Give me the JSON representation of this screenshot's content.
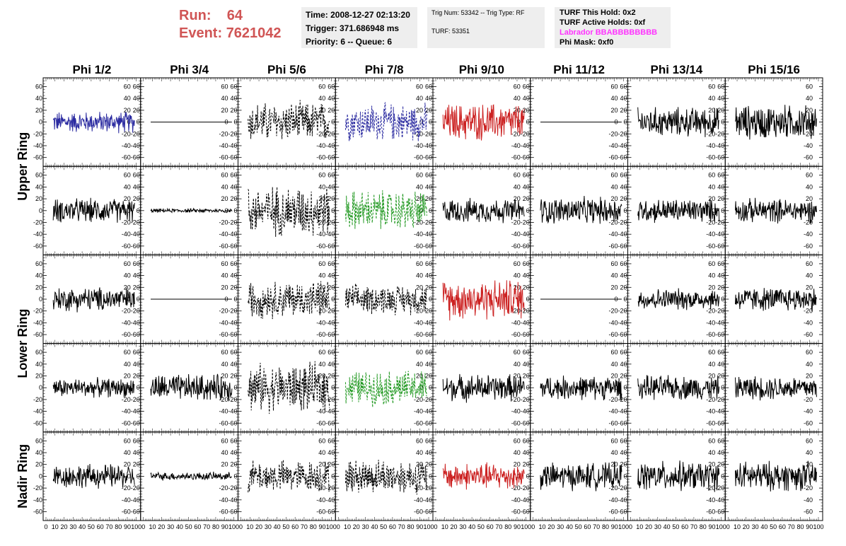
{
  "header": {
    "run_label": "Run:",
    "run_value": "64",
    "event_label": "Event:",
    "event_value": "7621042"
  },
  "time_panel": {
    "time": "Time: 2008-12-27 02:13:20",
    "trigger": "Trigger: 371.686948 ms",
    "priority": "Priority: 6 -- Queue: 6"
  },
  "trig_panel": {
    "trig": "Trig Num: 53342 -- Trig Type: RF",
    "turf": "TURF: 53351"
  },
  "turf_panel": {
    "hold": "TURF This Hold: 0x2",
    "active": "TURF Active Holds: 0xf",
    "labrador": "Labrador BBABBBBBBBB",
    "phi_mask": "Phi Mask: 0xf0"
  },
  "chart_data": {
    "type": "line",
    "columns": [
      "Phi 1/2",
      "Phi 3/4",
      "Phi 5/6",
      "Phi 7/8",
      "Phi 9/10",
      "Phi 11/12",
      "Phi 13/14",
      "Phi 15/16"
    ],
    "rows": [
      "Upper Ring",
      "Upper Ring",
      "Lower Ring",
      "Lower Ring",
      "Nadir Ring"
    ],
    "row_labels": [
      "Upper Ring",
      "Lower Ring",
      "Nadir Ring"
    ],
    "x_ticks": [
      "0",
      "10",
      "20",
      "30",
      "40",
      "50",
      "60",
      "70",
      "80",
      "90",
      "100"
    ],
    "xlim": [
      0,
      100
    ],
    "y_ticks": [
      "-60",
      "-40",
      "-20",
      "0",
      "20",
      "40",
      "60"
    ],
    "ylim": [
      -75,
      75
    ],
    "colors": {
      "blue": "#2a2aa0",
      "red": "#cc2222",
      "green": "#229922",
      "black": "#000000"
    },
    "traces": [
      [
        {
          "color": "blue",
          "amp": 16,
          "dash": false
        },
        {
          "color": "black",
          "amp": 0,
          "dash": false
        },
        {
          "color": "black",
          "amp": 30,
          "dash": true
        },
        {
          "color": "blue",
          "amp": 28,
          "dash": true
        },
        {
          "color": "red",
          "amp": 28,
          "dash": false
        },
        {
          "color": "black",
          "amp": 0,
          "dash": false
        },
        {
          "color": "black",
          "amp": 22,
          "dash": false
        },
        {
          "color": "black",
          "amp": 26,
          "dash": false
        }
      ],
      [
        {
          "color": "black",
          "amp": 18,
          "dash": false
        },
        {
          "color": "black",
          "amp": 3,
          "dash": false
        },
        {
          "color": "black",
          "amp": 38,
          "dash": true
        },
        {
          "color": "green",
          "amp": 30,
          "dash": true
        },
        {
          "color": "black",
          "amp": 18,
          "dash": false
        },
        {
          "color": "black",
          "amp": 20,
          "dash": false
        },
        {
          "color": "black",
          "amp": 18,
          "dash": false
        },
        {
          "color": "black",
          "amp": 18,
          "dash": false
        }
      ],
      [
        {
          "color": "black",
          "amp": 18,
          "dash": false
        },
        {
          "color": "black",
          "amp": 0,
          "dash": false
        },
        {
          "color": "black",
          "amp": 28,
          "dash": true
        },
        {
          "color": "black",
          "amp": 22,
          "dash": true
        },
        {
          "color": "red",
          "amp": 30,
          "dash": false
        },
        {
          "color": "black",
          "amp": 0,
          "dash": false
        },
        {
          "color": "black",
          "amp": 16,
          "dash": false
        },
        {
          "color": "black",
          "amp": 18,
          "dash": false
        }
      ],
      [
        {
          "color": "black",
          "amp": 14,
          "dash": false
        },
        {
          "color": "black",
          "amp": 20,
          "dash": false
        },
        {
          "color": "black",
          "amp": 36,
          "dash": true
        },
        {
          "color": "green",
          "amp": 26,
          "dash": true
        },
        {
          "color": "black",
          "amp": 20,
          "dash": false
        },
        {
          "color": "black",
          "amp": 18,
          "dash": false
        },
        {
          "color": "black",
          "amp": 18,
          "dash": false
        },
        {
          "color": "black",
          "amp": 18,
          "dash": false
        }
      ],
      [
        {
          "color": "black",
          "amp": 18,
          "dash": false
        },
        {
          "color": "black",
          "amp": 6,
          "dash": false
        },
        {
          "color": "black",
          "amp": 24,
          "dash": true
        },
        {
          "color": "black",
          "amp": 26,
          "dash": true
        },
        {
          "color": "red",
          "amp": 20,
          "dash": false
        },
        {
          "color": "black",
          "amp": 20,
          "dash": false
        },
        {
          "color": "black",
          "amp": 22,
          "dash": false
        },
        {
          "color": "black",
          "amp": 22,
          "dash": false
        }
      ]
    ]
  }
}
